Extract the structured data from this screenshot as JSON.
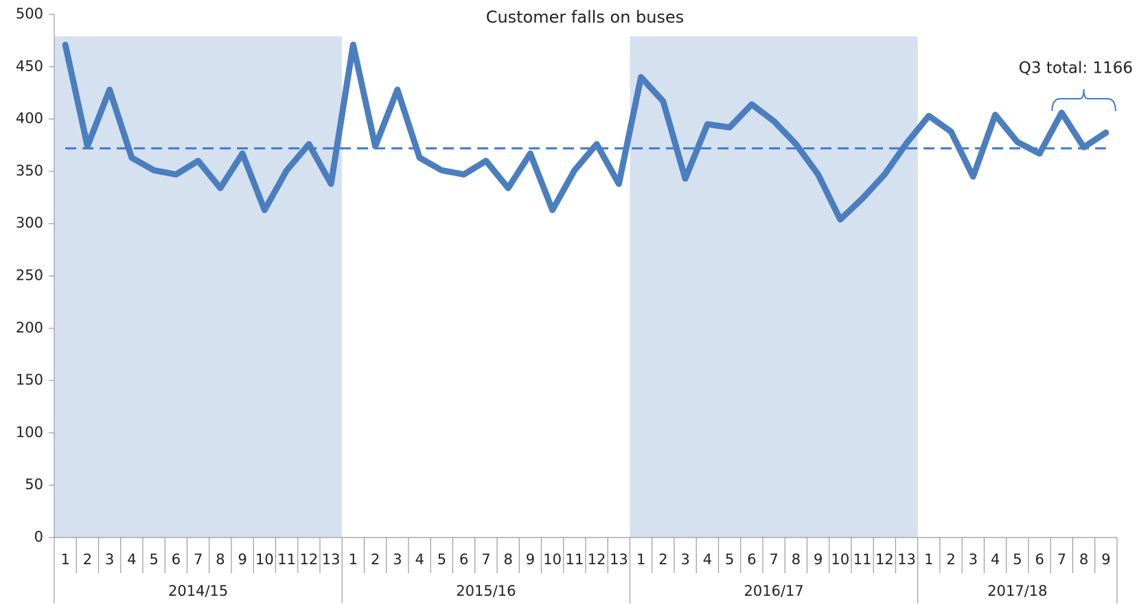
{
  "chart_data": {
    "type": "line",
    "title": "Customer falls on buses",
    "categories": [
      "1",
      "2",
      "3",
      "4",
      "5",
      "6",
      "7",
      "8",
      "9",
      "10",
      "11",
      "12",
      "13",
      "1",
      "2",
      "3",
      "4",
      "5",
      "6",
      "7",
      "8",
      "9",
      "10",
      "11",
      "12",
      "13",
      "1",
      "2",
      "3",
      "4",
      "5",
      "6",
      "7",
      "8",
      "9",
      "10",
      "11",
      "12",
      "13",
      "1",
      "2",
      "3",
      "4",
      "5",
      "6",
      "7",
      "8",
      "9"
    ],
    "groups": [
      "2014/15",
      "2015/16",
      "2016/17",
      "2017/18"
    ],
    "series": [
      {
        "color": "#4a7ebf",
        "values": [
          471,
          374,
          428,
          363,
          351,
          347,
          360,
          334,
          367,
          313,
          351,
          376,
          338,
          471,
          374,
          428,
          363,
          351,
          347,
          360,
          334,
          367,
          313,
          351,
          376,
          338,
          440,
          417,
          343,
          395,
          392,
          414,
          398,
          376,
          347,
          304,
          324,
          347,
          377,
          403,
          388,
          345,
          404,
          378,
          367,
          406,
          373,
          387
        ]
      }
    ],
    "reference_line": {
      "value": 372,
      "color": "#3c78d8"
    },
    "annotation": "Q3 total: 1166",
    "ylim": [
      0,
      500
    ],
    "yticks": [
      0,
      50,
      100,
      150,
      200,
      250,
      300,
      350,
      400,
      450,
      500
    ]
  }
}
